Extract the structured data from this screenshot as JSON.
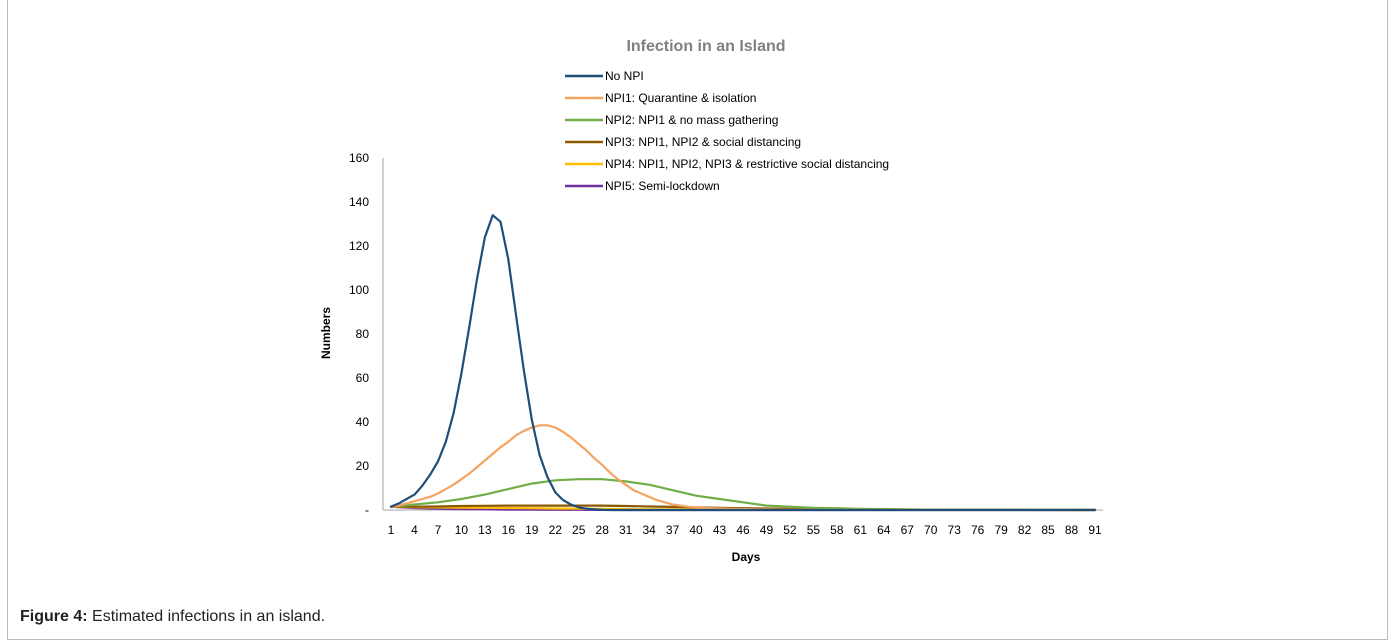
{
  "caption": {
    "label": "Figure 4:",
    "text": "Estimated infections in an island."
  },
  "chart_data": {
    "type": "line",
    "title": "Infection in an Island",
    "xlabel": "Days",
    "ylabel": "Numbers",
    "ylim": [
      0,
      160
    ],
    "yticks": [
      0,
      20,
      40,
      60,
      80,
      100,
      120,
      140,
      160
    ],
    "ytick_labels": [
      "-",
      "20",
      "40",
      "60",
      "80",
      "100",
      "120",
      "140",
      "160"
    ],
    "xlim": [
      1,
      91
    ],
    "xticks": [
      1,
      4,
      7,
      10,
      13,
      16,
      19,
      22,
      25,
      28,
      31,
      34,
      37,
      40,
      43,
      46,
      49,
      52,
      55,
      58,
      61,
      64,
      67,
      70,
      73,
      76,
      79,
      82,
      85,
      88,
      91
    ],
    "grid": false,
    "legend_position": "top-center",
    "series": [
      {
        "name": "No NPI",
        "color": "#1f4e79",
        "points": [
          [
            1,
            1.5
          ],
          [
            2,
            3
          ],
          [
            3,
            5
          ],
          [
            4,
            7
          ],
          [
            5,
            11
          ],
          [
            6,
            16
          ],
          [
            7,
            22
          ],
          [
            8,
            31
          ],
          [
            9,
            44
          ],
          [
            10,
            62
          ],
          [
            11,
            83
          ],
          [
            12,
            105
          ],
          [
            13,
            124
          ],
          [
            14,
            134
          ],
          [
            15,
            131
          ],
          [
            16,
            114
          ],
          [
            17,
            88
          ],
          [
            18,
            63
          ],
          [
            19,
            41
          ],
          [
            20,
            25
          ],
          [
            21,
            15
          ],
          [
            22,
            8
          ],
          [
            23,
            4.5
          ],
          [
            24,
            2.5
          ],
          [
            25,
            1.2
          ],
          [
            26,
            0.6
          ],
          [
            27,
            0.3
          ],
          [
            28,
            0.1
          ],
          [
            29,
            0
          ],
          [
            91,
            0
          ]
        ]
      },
      {
        "name": "NPI1: Quarantine & isolation",
        "color": "#f4a460",
        "points": [
          [
            1,
            1.5
          ],
          [
            2,
            2
          ],
          [
            3,
            3
          ],
          [
            4,
            4
          ],
          [
            5,
            5
          ],
          [
            6,
            6
          ],
          [
            7,
            7.5
          ],
          [
            8,
            9.5
          ],
          [
            9,
            11.5
          ],
          [
            10,
            14
          ],
          [
            11,
            16.5
          ],
          [
            12,
            19.5
          ],
          [
            13,
            22.5
          ],
          [
            14,
            25.5
          ],
          [
            15,
            28.5
          ],
          [
            16,
            31
          ],
          [
            17,
            34
          ],
          [
            18,
            36
          ],
          [
            19,
            37.5
          ],
          [
            20,
            38.5
          ],
          [
            21,
            38.5
          ],
          [
            22,
            37.5
          ],
          [
            23,
            35.5
          ],
          [
            24,
            33
          ],
          [
            25,
            30
          ],
          [
            26,
            27
          ],
          [
            27,
            23.5
          ],
          [
            28,
            20.5
          ],
          [
            29,
            17
          ],
          [
            30,
            14
          ],
          [
            31,
            11.5
          ],
          [
            32,
            9
          ],
          [
            33,
            7.5
          ],
          [
            34,
            6
          ],
          [
            35,
            4.5
          ],
          [
            36,
            3.5
          ],
          [
            37,
            2.5
          ],
          [
            38,
            2
          ],
          [
            39,
            1.5
          ],
          [
            40,
            1.2
          ],
          [
            41,
            1
          ],
          [
            42,
            0.8
          ],
          [
            43,
            0.7
          ],
          [
            44,
            0.6
          ],
          [
            46,
            0.4
          ],
          [
            50,
            0.2
          ],
          [
            55,
            0.1
          ],
          [
            91,
            0
          ]
        ]
      },
      {
        "name": "NPI2: NPI1 & no mass gathering",
        "color": "#70ad47",
        "points": [
          [
            1,
            1.5
          ],
          [
            4,
            2.5
          ],
          [
            7,
            3.5
          ],
          [
            10,
            5
          ],
          [
            13,
            7
          ],
          [
            16,
            9.5
          ],
          [
            19,
            12
          ],
          [
            22,
            13.5
          ],
          [
            25,
            14
          ],
          [
            28,
            14
          ],
          [
            31,
            13
          ],
          [
            34,
            11.5
          ],
          [
            37,
            9
          ],
          [
            40,
            6.5
          ],
          [
            43,
            5
          ],
          [
            46,
            3.5
          ],
          [
            49,
            2
          ],
          [
            52,
            1.5
          ],
          [
            55,
            1
          ],
          [
            58,
            0.8
          ],
          [
            61,
            0.5
          ],
          [
            64,
            0.4
          ],
          [
            67,
            0.3
          ],
          [
            70,
            0.2
          ],
          [
            73,
            0.1
          ],
          [
            91,
            0.1
          ]
        ]
      },
      {
        "name": "NPI3: NPI1, NPI2 & social distancing",
        "color": "#8b5a00",
        "points": [
          [
            1,
            1.5
          ],
          [
            4,
            1.5
          ],
          [
            7,
            1.6
          ],
          [
            10,
            1.8
          ],
          [
            13,
            1.9
          ],
          [
            16,
            2
          ],
          [
            19,
            2
          ],
          [
            22,
            2
          ],
          [
            25,
            2
          ],
          [
            28,
            2
          ],
          [
            31,
            1.8
          ],
          [
            34,
            1.6
          ],
          [
            37,
            1.4
          ],
          [
            40,
            1.2
          ],
          [
            43,
            1
          ],
          [
            46,
            0.8
          ],
          [
            49,
            0.7
          ],
          [
            52,
            0.5
          ],
          [
            55,
            0.4
          ],
          [
            58,
            0.3
          ],
          [
            61,
            0.2
          ],
          [
            64,
            0.2
          ],
          [
            67,
            0.1
          ],
          [
            70,
            0.1
          ],
          [
            91,
            0
          ]
        ]
      },
      {
        "name": "NPI4: NPI1, NPI2, NPI3 & restrictive social distancing",
        "color": "#ffc000",
        "points": [
          [
            1,
            1.5
          ],
          [
            4,
            1.3
          ],
          [
            7,
            1.2
          ],
          [
            10,
            1.1
          ],
          [
            13,
            1
          ],
          [
            16,
            0.9
          ],
          [
            19,
            0.8
          ],
          [
            22,
            0.7
          ],
          [
            25,
            0.6
          ],
          [
            28,
            0.5
          ],
          [
            31,
            0.4
          ],
          [
            34,
            0.3
          ],
          [
            37,
            0.3
          ],
          [
            40,
            0.2
          ],
          [
            43,
            0.2
          ],
          [
            46,
            0.1
          ],
          [
            49,
            0.1
          ],
          [
            91,
            0
          ]
        ]
      },
      {
        "name": "NPI5: Semi-lockdown",
        "color": "#7030a0",
        "points": [
          [
            1,
            1.5
          ],
          [
            4,
            0.9
          ],
          [
            7,
            0.6
          ],
          [
            10,
            0.4
          ],
          [
            13,
            0.3
          ],
          [
            16,
            0.2
          ],
          [
            19,
            0.15
          ],
          [
            22,
            0.1
          ],
          [
            25,
            0.1
          ],
          [
            28,
            0.05
          ],
          [
            31,
            0
          ],
          [
            91,
            0
          ]
        ]
      }
    ]
  }
}
